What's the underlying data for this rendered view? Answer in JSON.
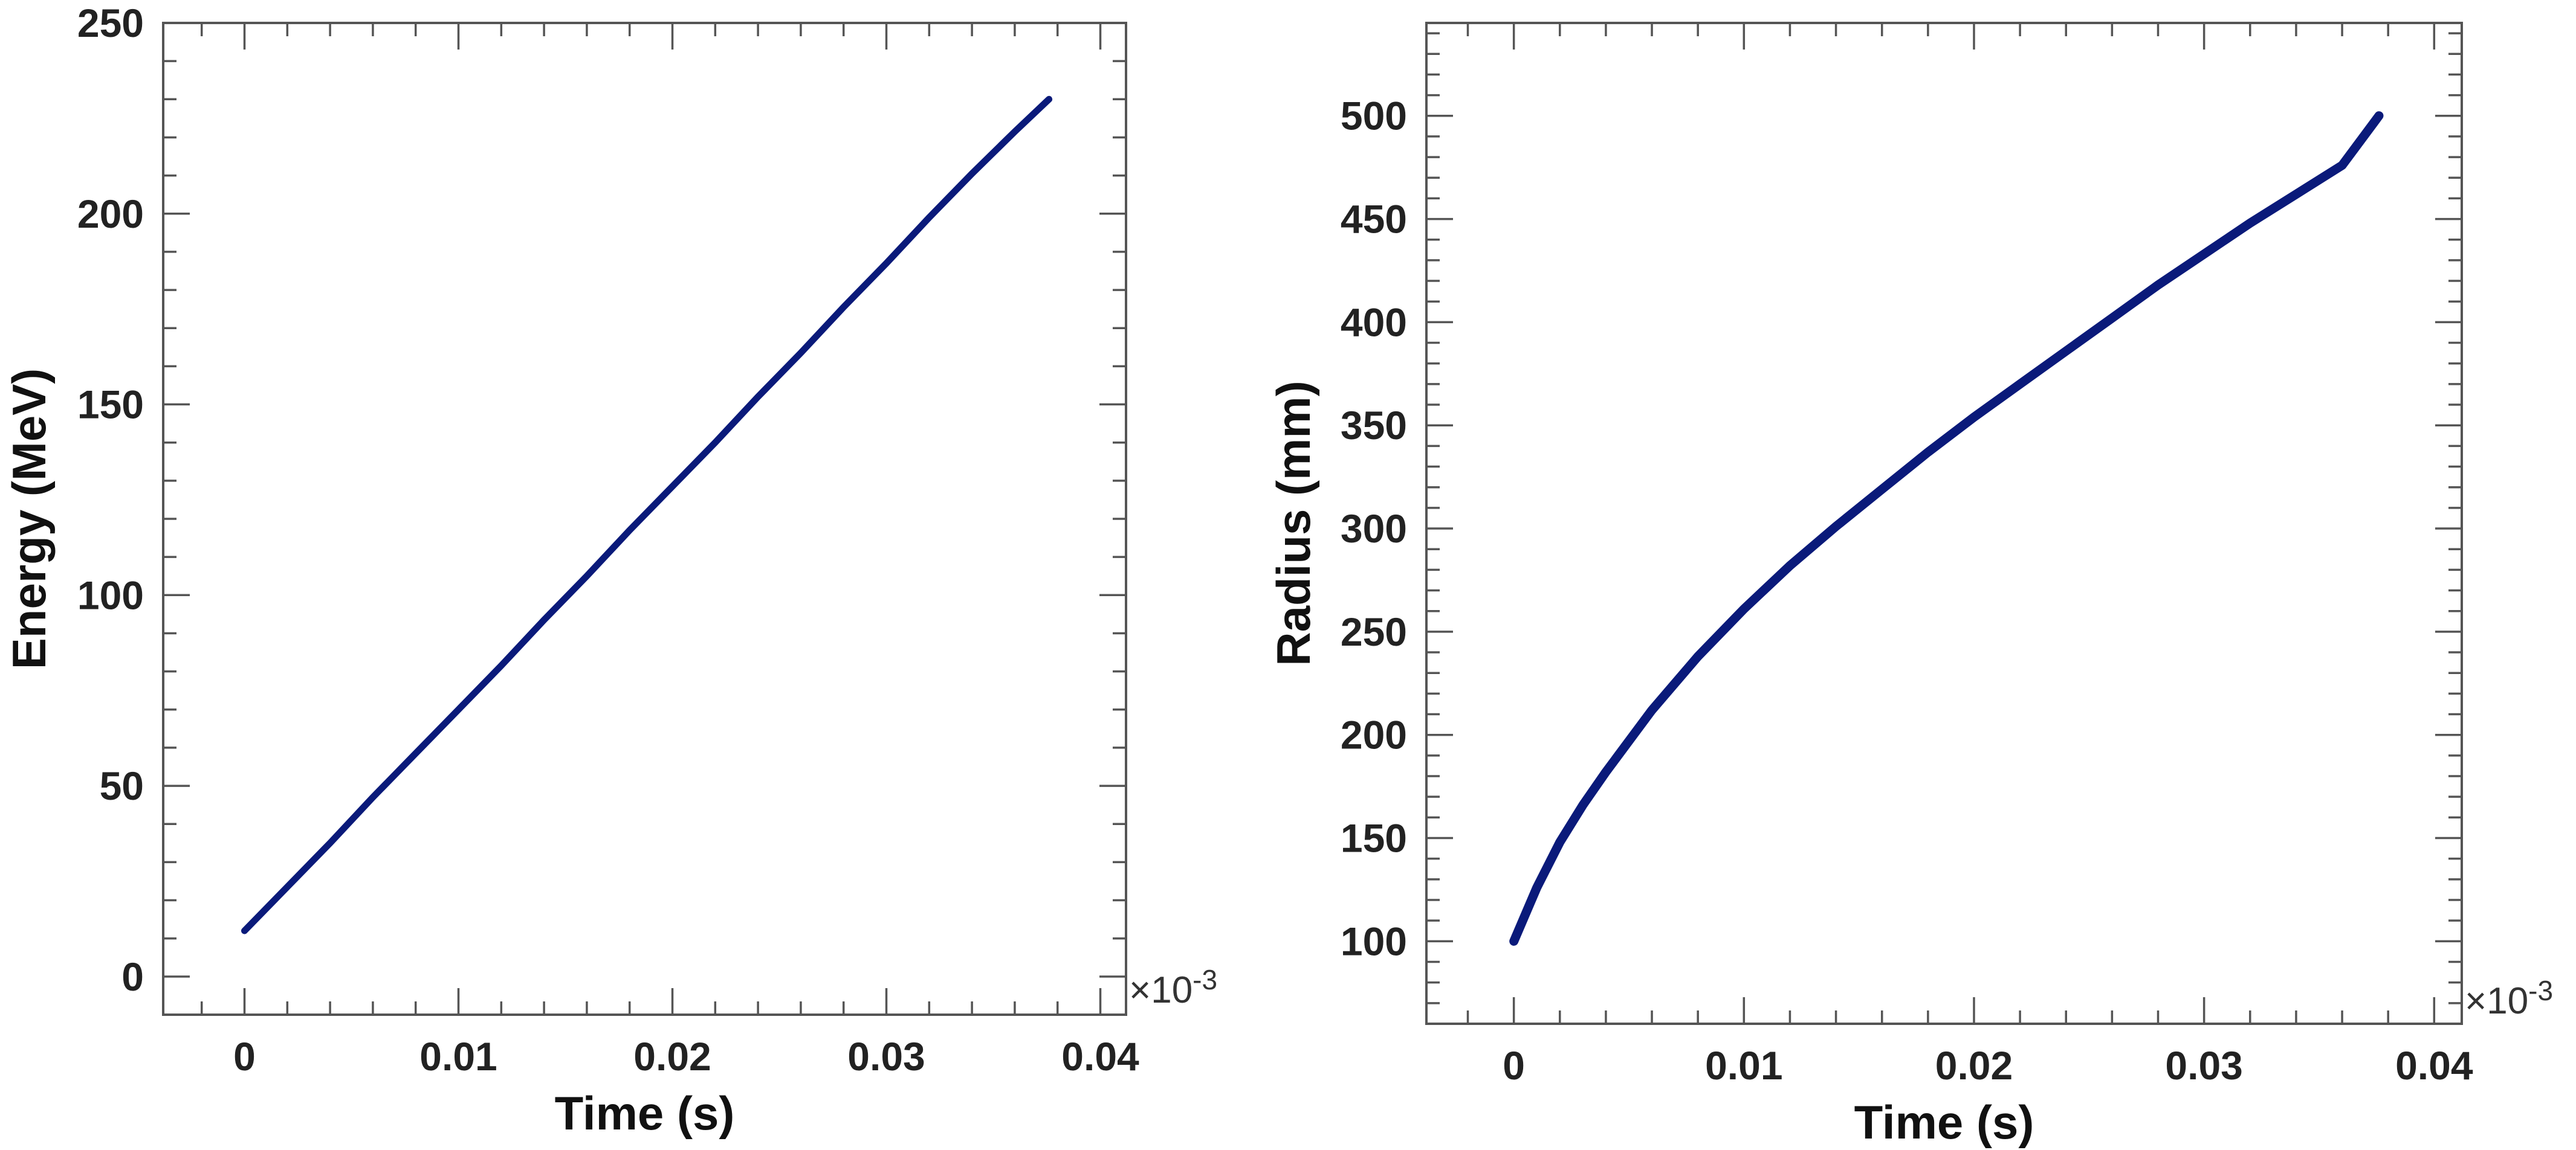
{
  "chart_data": [
    {
      "type": "line",
      "title": "",
      "xlabel": "Time (s)",
      "ylabel": "Energy (MeV)",
      "x_multiplier": "×10",
      "x_multiplier_exp": "-3",
      "xlim": [
        -0.0038,
        0.0412
      ],
      "ylim": [
        -10,
        250
      ],
      "xticks": [
        0,
        0.01,
        0.02,
        0.03,
        0.04
      ],
      "xtick_labels": [
        "0",
        "0.01",
        "0.02",
        "0.03",
        "0.04"
      ],
      "yticks": [
        0,
        50,
        100,
        150,
        200,
        250
      ],
      "ytick_labels": [
        "0",
        "50",
        "100",
        "150",
        "200",
        "250"
      ],
      "x_minor_step": 0.002,
      "y_minor_step": 10,
      "grid": false,
      "line_color": "#0a1a7a",
      "series": [
        {
          "x": [
            0,
            0.002,
            0.004,
            0.006,
            0.008,
            0.01,
            0.012,
            0.014,
            0.016,
            0.018,
            0.02,
            0.022,
            0.024,
            0.026,
            0.028,
            0.03,
            0.032,
            0.034,
            0.036,
            0.0376
          ],
          "values": [
            12,
            23.5,
            35,
            47,
            58.5,
            70,
            81.5,
            93.5,
            105,
            117,
            128.5,
            140,
            152,
            163.5,
            175.5,
            187,
            199,
            210.5,
            221.5,
            230
          ]
        }
      ]
    },
    {
      "type": "line",
      "title": "",
      "xlabel": "Time (s)",
      "ylabel": "Radius (mm)",
      "x_multiplier": "×10",
      "x_multiplier_exp": "-3",
      "xlim": [
        -0.0038,
        0.0412
      ],
      "ylim": [
        60,
        545
      ],
      "xticks": [
        0,
        0.01,
        0.02,
        0.03,
        0.04
      ],
      "xtick_labels": [
        "0",
        "0.01",
        "0.02",
        "0.03",
        "0.04"
      ],
      "yticks": [
        100,
        150,
        200,
        250,
        300,
        350,
        400,
        450,
        500
      ],
      "ytick_labels": [
        "100",
        "150",
        "200",
        "250",
        "300",
        "350",
        "400",
        "450",
        "500"
      ],
      "x_minor_step": 0.002,
      "y_minor_step": 10,
      "grid": false,
      "line_color": "#0a1a7a",
      "series": [
        {
          "x": [
            0,
            0.001,
            0.002,
            0.003,
            0.004,
            0.006,
            0.008,
            0.01,
            0.012,
            0.014,
            0.016,
            0.018,
            0.02,
            0.022,
            0.024,
            0.026,
            0.028,
            0.03,
            0.032,
            0.034,
            0.036,
            0.0376
          ],
          "values": [
            100,
            126,
            148,
            166,
            182,
            212,
            238,
            261,
            282,
            301,
            319,
            337,
            354,
            370,
            386,
            402,
            418,
            433,
            448,
            462,
            476,
            500
          ]
        }
      ]
    }
  ]
}
